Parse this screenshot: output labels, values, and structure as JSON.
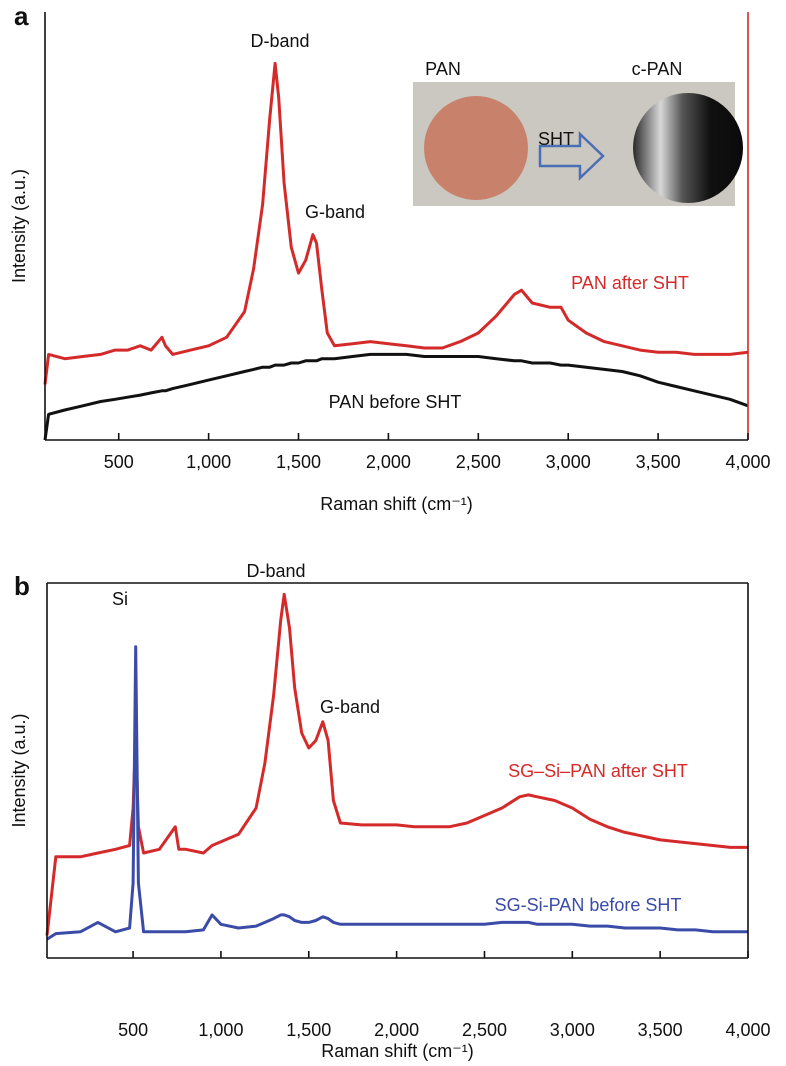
{
  "chart_data": [
    {
      "type": "line",
      "panel": "a",
      "xlabel": "Raman shift (cm⁻¹)",
      "ylabel": "Intensity (a.u.)",
      "xlim": [
        90,
        4000
      ],
      "ylim": [
        0,
        100
      ],
      "xticks": [
        500,
        {
          "value": 1000,
          "label": "1,000"
        },
        {
          "value": 1500,
          "label": "1,500"
        },
        {
          "value": 2000,
          "label": "2,000"
        },
        {
          "value": 2500,
          "label": "2,500"
        },
        {
          "value": 3000,
          "label": "3,000"
        },
        {
          "value": 3500,
          "label": "3,500"
        },
        {
          "value": 4000,
          "label": "4,000"
        }
      ],
      "annotations": [
        "D-band",
        "G-band",
        "PAN",
        "SHT",
        "c-PAN"
      ],
      "x": [
        90,
        110,
        200,
        300,
        400,
        480,
        550,
        620,
        680,
        740,
        760,
        800,
        900,
        1000,
        1100,
        1200,
        1250,
        1300,
        1340,
        1370,
        1390,
        1420,
        1460,
        1500,
        1540,
        1580,
        1600,
        1630,
        1660,
        1700,
        1800,
        1900,
        2000,
        2100,
        2200,
        2300,
        2400,
        2500,
        2600,
        2700,
        2740,
        2800,
        2900,
        2960,
        3000,
        3100,
        3200,
        3300,
        3400,
        3500,
        3600,
        3700,
        3800,
        3900,
        4000
      ],
      "series": [
        {
          "name": "PAN after SHT",
          "color": "#d42a2a",
          "values": [
            13,
            20,
            19,
            19.5,
            20,
            21,
            21,
            22,
            21,
            24,
            22,
            20,
            21,
            22,
            24,
            30,
            40,
            55,
            75,
            88,
            80,
            60,
            45,
            39,
            42,
            48,
            46,
            35,
            25,
            22,
            22.5,
            23,
            22.5,
            22,
            21.5,
            21.5,
            23,
            25,
            29,
            34,
            35,
            32,
            31,
            31,
            28,
            25,
            23,
            22,
            21,
            20.5,
            20.5,
            20,
            20,
            20,
            20.5
          ]
        },
        {
          "name": "PAN before SHT",
          "color": "#111111",
          "values": [
            0,
            6,
            7,
            8,
            9,
            9.5,
            10,
            10.5,
            11,
            11.5,
            11.5,
            12,
            13,
            14,
            15,
            16,
            16.5,
            17,
            17,
            17.5,
            17.5,
            17.5,
            18,
            18,
            18.5,
            18.5,
            18.5,
            19,
            19,
            19,
            19.5,
            20,
            20,
            20,
            19.5,
            19.5,
            19.5,
            19.5,
            19,
            18.5,
            18.5,
            18,
            18,
            17.5,
            17.5,
            17,
            16.5,
            16,
            15,
            13.5,
            12.5,
            11.5,
            10.5,
            9.5,
            8
          ]
        }
      ]
    },
    {
      "type": "line",
      "panel": "b",
      "xlabel": "Raman shift (cm⁻¹)",
      "ylabel": "Intensity (a.u.)",
      "xlim": [
        10,
        4000
      ],
      "ylim": [
        0,
        100
      ],
      "xticks": [
        500,
        {
          "value": 1000,
          "label": "1,000"
        },
        {
          "value": 1500,
          "label": "1,500"
        },
        {
          "value": 2000,
          "label": "2,000"
        },
        {
          "value": 2500,
          "label": "2,500"
        },
        {
          "value": 3000,
          "label": "3,000"
        },
        {
          "value": 3500,
          "label": "3,500"
        },
        {
          "value": 4000,
          "label": "4,000"
        }
      ],
      "annotations": [
        "Si",
        "D-band",
        "G-band"
      ],
      "x": [
        10,
        60,
        200,
        300,
        400,
        480,
        500,
        515,
        530,
        560,
        650,
        740,
        760,
        800,
        900,
        950,
        1000,
        1100,
        1200,
        1250,
        1300,
        1340,
        1360,
        1390,
        1420,
        1460,
        1500,
        1540,
        1580,
        1610,
        1640,
        1680,
        1800,
        1900,
        2000,
        2100,
        2200,
        2300,
        2400,
        2500,
        2600,
        2700,
        2750,
        2800,
        2900,
        3000,
        3100,
        3200,
        3300,
        3400,
        3500,
        3600,
        3700,
        3800,
        3900,
        4000
      ],
      "series": [
        {
          "name": "SG–Si–PAN after SHT",
          "color": "#d42a2a",
          "values": [
            6,
            27,
            27,
            28,
            29,
            30,
            40,
            60,
            35,
            28,
            29,
            35,
            29,
            29,
            28,
            30,
            31,
            33,
            40,
            52,
            70,
            90,
            97,
            88,
            72,
            60,
            56,
            58,
            63,
            58,
            42,
            36,
            35.5,
            35.5,
            35.5,
            35,
            35,
            35,
            36,
            38,
            40,
            43,
            43.5,
            43,
            42,
            40,
            37,
            35,
            33.5,
            32.5,
            31.5,
            31,
            30.5,
            30,
            29.5,
            29.5
          ]
        },
        {
          "name": "SG-Si-PAN before SHT",
          "color": "#3b4ba8",
          "values": [
            5,
            6.5,
            7,
            9.5,
            7,
            8,
            20,
            83,
            20,
            7,
            7,
            7,
            7,
            7,
            7.5,
            11.5,
            9,
            8,
            8.5,
            9.5,
            10.5,
            11.5,
            11.5,
            11,
            10,
            9.5,
            9.5,
            10,
            11,
            10.5,
            9.5,
            9,
            9,
            9,
            9,
            9,
            9,
            9,
            9,
            9,
            9.5,
            9.5,
            9.5,
            9,
            9,
            9,
            8.5,
            8.5,
            8,
            8,
            8,
            7.5,
            7.5,
            7,
            7,
            7
          ]
        }
      ]
    }
  ]
}
